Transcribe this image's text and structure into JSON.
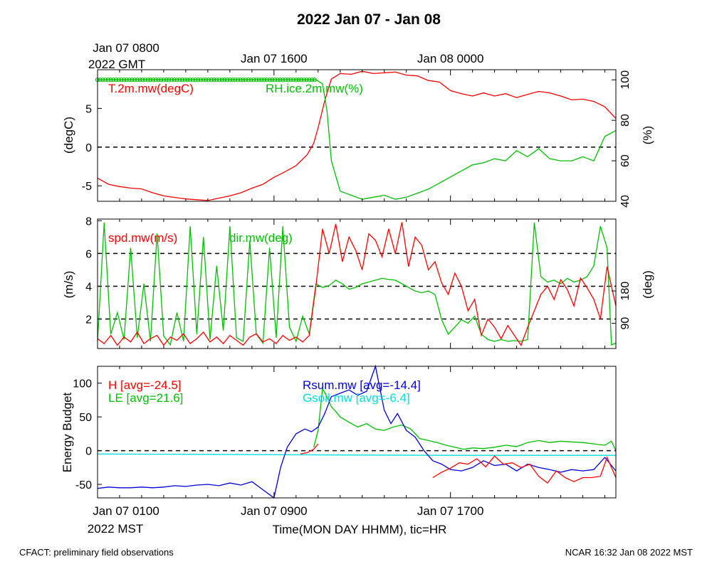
{
  "page": {
    "title": "2022 Jan 07 - Jan 08",
    "footer_left": "CFACT: preliminary field observations",
    "footer_right": "NCAR 16:32 Jan 08 2022 MST"
  },
  "top_axis": {
    "labels": [
      {
        "line1": "Jan 07 0800",
        "line2": "2022 GMT"
      },
      {
        "line1": "Jan 07 1600",
        "line2": ""
      },
      {
        "line1": "Jan 08 0000",
        "line2": ""
      }
    ]
  },
  "bottom_axis": {
    "labels": [
      {
        "line1": "Jan 07 0100",
        "line2": "2022 MST"
      },
      {
        "line1": "Jan 07 0900",
        "line2": ""
      },
      {
        "line1": "Jan 07 1700",
        "line2": ""
      }
    ],
    "xlabel": "Time(MON DAY HHMM), tic=HR"
  },
  "colors": {
    "red": "#ff0000",
    "green": "#00c000",
    "blue": "#0000e0",
    "cyan": "#00e0e0",
    "axis": "#000000"
  },
  "chart_data": [
    {
      "type": "line",
      "x_unit": "hours since Jan 07 0100 MST",
      "xlim": [
        0,
        23.5
      ],
      "ylabel_left": "(degC)",
      "ylabel_right": "(%)",
      "ylim_left": [
        -7,
        10
      ],
      "ylim_right": [
        40,
        105
      ],
      "yticks_left": [
        "-5",
        "0",
        "5"
      ],
      "yticks_left_values": [
        -5,
        0,
        5
      ],
      "yticks_right": [
        "40",
        "60",
        "80",
        "100"
      ],
      "yticks_right_values": [
        40,
        60,
        80,
        100
      ],
      "zero_line": 0,
      "series": [
        {
          "name": "T.2m.mw(degC)",
          "axis": "left",
          "color": "#ff0000",
          "x": [
            0,
            0.5,
            1,
            1.5,
            2,
            2.5,
            3,
            3.5,
            4,
            4.5,
            5,
            5.5,
            6,
            6.5,
            7,
            7.5,
            8,
            8.5,
            9,
            9.5,
            9.8,
            10,
            10.3,
            10.6,
            11,
            11.5,
            12,
            12.5,
            13,
            13.5,
            14,
            14.5,
            15,
            15.5,
            16,
            16.5,
            17,
            17.5,
            18,
            18.5,
            19,
            19.5,
            20,
            20.5,
            21,
            21.5,
            22,
            22.5,
            23,
            23.5
          ],
          "y": [
            -4,
            -4.8,
            -5.1,
            -5.3,
            -5.4,
            -5.9,
            -6.3,
            -6.5,
            -6.7,
            -6.8,
            -6.9,
            -6.6,
            -6.3,
            -5.9,
            -5.3,
            -4.8,
            -3.9,
            -3.2,
            -2.4,
            -1.0,
            0.5,
            2.5,
            6.0,
            8.8,
            9.5,
            9.4,
            9.8,
            9.5,
            9.6,
            9.7,
            9.3,
            9.2,
            8.6,
            8.4,
            7.3,
            6.9,
            6.6,
            7.0,
            6.6,
            6.9,
            6.4,
            6.8,
            7.2,
            7.0,
            6.6,
            6.1,
            6.2,
            5.9,
            5.2,
            3.7
          ]
        },
        {
          "name": "RH.ice.2m.mw(%)",
          "axis": "right",
          "color": "#00c000",
          "x": [
            0,
            1,
            2,
            3,
            4,
            5,
            6,
            7,
            8,
            9,
            9.6,
            9.9,
            10.2,
            10.4,
            10.6,
            11,
            11.5,
            12,
            12.5,
            13,
            13.5,
            14,
            14.5,
            15,
            15.5,
            16,
            16.5,
            17,
            17.5,
            18,
            18.5,
            19,
            19.5,
            20,
            20.5,
            21,
            21.5,
            22,
            22.5,
            23,
            23.5
          ],
          "y": [
            100,
            100,
            100,
            100,
            100,
            100,
            100,
            100,
            100,
            100,
            100,
            100,
            98,
            85,
            60,
            45,
            43,
            41,
            42,
            43,
            41,
            42,
            44,
            46,
            49,
            52,
            55,
            58,
            59,
            61,
            60,
            65,
            62,
            66,
            61,
            60,
            60,
            62,
            60,
            72,
            75
          ]
        }
      ]
    },
    {
      "type": "line",
      "x_unit": "hours since Jan 07 0100 MST",
      "xlim": [
        0,
        23.5
      ],
      "ylabel_left": "(m/s)",
      "ylabel_right": "(deg)",
      "ylim_left": [
        0.2,
        8.1
      ],
      "ylim_right": [
        20,
        380
      ],
      "yticks_left": [
        "2",
        "4",
        "6",
        "8"
      ],
      "yticks_left_values": [
        2,
        4,
        6,
        8
      ],
      "yticks_right": [
        "90",
        "180"
      ],
      "yticks_right_values": [
        90,
        180
      ],
      "reference_lines": [
        2,
        4,
        6
      ],
      "series": [
        {
          "name": "spd.mw(m/s)",
          "axis": "left",
          "color": "#ff0000",
          "x": [
            0,
            0.3,
            0.6,
            0.9,
            1.2,
            1.5,
            1.8,
            2.1,
            2.4,
            2.7,
            3.0,
            3.3,
            3.6,
            3.9,
            4.2,
            4.5,
            4.8,
            5.1,
            5.4,
            5.7,
            6.0,
            6.3,
            6.6,
            6.9,
            7.2,
            7.5,
            7.8,
            8.1,
            8.4,
            8.7,
            9.0,
            9.3,
            9.6,
            9.9,
            10.2,
            10.5,
            10.8,
            11.1,
            11.4,
            11.7,
            12.0,
            12.3,
            12.6,
            12.9,
            13.2,
            13.5,
            13.8,
            14.1,
            14.4,
            14.7,
            15.0,
            15.3,
            15.6,
            15.9,
            16.2,
            16.5,
            16.8,
            17.1,
            17.4,
            17.7,
            18.0,
            18.3,
            18.6,
            18.9,
            19.2,
            19.5,
            19.8,
            20.1,
            20.4,
            20.7,
            21.0,
            21.3,
            21.6,
            21.9,
            22.2,
            22.5,
            22.8,
            23.1,
            23.5
          ],
          "y": [
            0.8,
            0.5,
            1.0,
            0.4,
            0.9,
            0.6,
            1.2,
            0.5,
            0.8,
            1.0,
            0.4,
            0.9,
            0.7,
            1.1,
            0.5,
            0.8,
            1.2,
            0.6,
            0.9,
            0.5,
            1.0,
            0.7,
            0.4,
            0.9,
            1.1,
            0.6,
            0.8,
            0.5,
            1.0,
            0.7,
            0.9,
            0.6,
            1.0,
            4.0,
            7.5,
            6.0,
            7.8,
            5.5,
            7.0,
            6.2,
            5.0,
            7.2,
            6.8,
            5.8,
            7.5,
            6.0,
            7.9,
            5.2,
            7.0,
            6.5,
            5.0,
            5.5,
            4.2,
            3.5,
            4.8,
            4.0,
            2.5,
            3.2,
            1.0,
            2.0,
            1.5,
            0.8,
            1.6,
            1.0,
            0.4,
            1.5,
            2.5,
            3.5,
            4.0,
            3.2,
            4.4,
            3.8,
            2.8,
            4.5,
            3.9,
            3.2,
            2.0,
            5.2,
            2.8
          ]
        },
        {
          "name": "dir.mw(deg)",
          "axis": "right",
          "color": "#00c000",
          "x": [
            0,
            0.3,
            0.6,
            0.9,
            1.2,
            1.5,
            1.8,
            2.1,
            2.4,
            2.7,
            3.0,
            3.3,
            3.6,
            3.9,
            4.2,
            4.5,
            4.8,
            5.1,
            5.4,
            5.7,
            6.0,
            6.3,
            6.6,
            6.9,
            7.2,
            7.5,
            7.8,
            8.1,
            8.4,
            8.7,
            9.0,
            9.3,
            9.6,
            9.9,
            10.2,
            10.5,
            10.8,
            11.1,
            11.4,
            11.7,
            12.0,
            12.3,
            12.6,
            12.9,
            13.2,
            13.5,
            13.8,
            14.1,
            14.4,
            14.7,
            15.0,
            15.3,
            15.6,
            15.9,
            16.2,
            16.5,
            16.8,
            17.1,
            17.4,
            17.7,
            18.0,
            18.3,
            18.6,
            18.9,
            19.2,
            19.5,
            19.8,
            20.1,
            20.4,
            20.7,
            21.0,
            21.3,
            21.6,
            21.9,
            22.2,
            22.5,
            22.8,
            23.1,
            23.3,
            23.5
          ],
          "y": [
            40,
            370,
            60,
            120,
            45,
            300,
            50,
            200,
            40,
            340,
            55,
            30,
            120,
            40,
            360,
            60,
            330,
            45,
            250,
            70,
            360,
            50,
            40,
            320,
            60,
            35,
            300,
            50,
            360,
            80,
            40,
            110,
            60,
            200,
            190,
            195,
            210,
            200,
            185,
            190,
            200,
            205,
            210,
            215,
            212,
            210,
            200,
            190,
            180,
            175,
            180,
            170,
            100,
            60,
            80,
            100,
            90,
            110,
            60,
            45,
            40,
            45,
            40,
            42,
            40,
            45,
            370,
            220,
            205,
            210,
            200,
            215,
            205,
            210,
            220,
            250,
            360,
            300,
            30,
            35
          ]
        }
      ]
    },
    {
      "type": "line",
      "x_unit": "hours since Jan 07 0100 MST",
      "xlim": [
        0,
        23.5
      ],
      "ylabel": "Energy Budget",
      "ylim": [
        -70,
        125
      ],
      "yticks": [
        "-50",
        "0",
        "50",
        "100"
      ],
      "yticks_values": [
        -50,
        0,
        50,
        100
      ],
      "zero_line": 0,
      "series": [
        {
          "name": "H [avg=-24.5]",
          "color": "#ff0000",
          "segments": [
            {
              "x": [
                9.2,
                9.5,
                9.8,
                10.0
              ],
              "y": [
                -5,
                -3,
                2,
                10
              ]
            },
            {
              "x": [
                15.2,
                15.6,
                16.0,
                16.4,
                16.8,
                17.2,
                17.6,
                18.0,
                18.4,
                18.8,
                19.2,
                19.6,
                20.0,
                20.4,
                20.8,
                21.2,
                21.6,
                22.0,
                22.4,
                22.8,
                23.1,
                23.5
              ],
              "y": [
                -40,
                -32,
                -26,
                -18,
                -20,
                -12,
                -24,
                -8,
                -20,
                -18,
                -25,
                -20,
                -38,
                -48,
                -30,
                -40,
                -46,
                -40,
                -40,
                -38,
                -10,
                -40
              ]
            }
          ]
        },
        {
          "name": "LE [avg=21.6]",
          "color": "#00c000",
          "segments": [
            {
              "x": [
                9.8,
                10.0,
                10.2,
                10.4,
                10.6,
                10.8,
                11.0,
                11.4,
                11.8,
                12.2,
                12.6,
                13.0,
                13.4,
                13.8,
                14.2,
                14.6,
                15.0,
                15.4,
                15.8,
                16.2,
                16.6,
                17.0,
                17.5,
                18.0,
                18.5,
                19.0,
                19.5,
                20.0,
                20.5,
                21.0,
                21.5,
                22.0,
                22.5,
                23.0,
                23.3,
                23.5
              ],
              "y": [
                5,
                30,
                92,
                80,
                65,
                58,
                50,
                42,
                35,
                40,
                32,
                30,
                35,
                38,
                32,
                18,
                15,
                12,
                8,
                5,
                2,
                4,
                3,
                5,
                8,
                6,
                12,
                15,
                12,
                14,
                13,
                12,
                10,
                8,
                14,
                0
              ]
            }
          ]
        },
        {
          "name": "Rsum.mw [avg=-14.4]",
          "color": "#0000e0",
          "segments": [
            {
              "x": [
                0,
                0.5,
                1,
                1.5,
                2,
                2.5,
                3,
                3.5,
                4,
                4.5,
                5,
                5.5,
                6,
                6.5,
                7,
                7.5,
                8,
                8.3,
                8.6,
                9.0,
                9.4,
                9.7,
                10.0,
                10.3,
                10.6,
                11.0,
                11.4,
                11.8,
                12.2,
                12.6,
                13.0,
                13.3,
                13.6,
                14.0,
                14.4,
                14.8,
                15.2,
                15.6,
                16.0,
                16.5,
                17.0,
                17.5,
                18.0,
                18.5,
                19.0,
                19.5,
                20.0,
                20.5,
                21.0,
                21.5,
                22.0,
                22.5,
                23.0,
                23.5
              ],
              "y": [
                -56,
                -54,
                -55,
                -55,
                -54,
                -55,
                -54,
                -52,
                -53,
                -51,
                -50,
                -52,
                -48,
                -51,
                -46,
                -58,
                -70,
                -25,
                5,
                25,
                32,
                28,
                35,
                55,
                80,
                85,
                90,
                82,
                88,
                125,
                60,
                40,
                55,
                30,
                20,
                0,
                -15,
                -20,
                -28,
                -30,
                -25,
                -15,
                -22,
                -20,
                -30,
                -20,
                -25,
                -28,
                -32,
                -28,
                -30,
                -28,
                -10,
                -30
              ]
            }
          ]
        },
        {
          "name": "Gsoil.mw [avg=-6.4]",
          "color": "#00e0e0",
          "segments": [
            {
              "x": [
                0,
                4,
                8,
                12,
                16,
                20,
                23.5
              ],
              "y": [
                -5,
                -5.5,
                -6,
                -6.5,
                -7,
                -7,
                -7
              ]
            }
          ]
        }
      ]
    }
  ]
}
